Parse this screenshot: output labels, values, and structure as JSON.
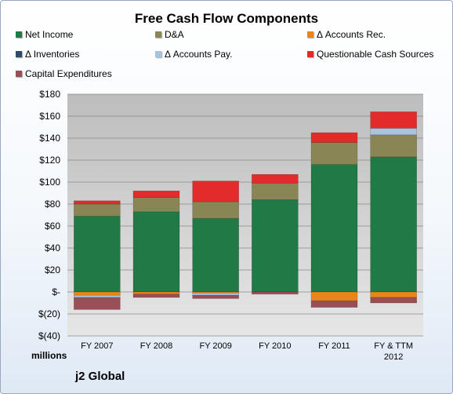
{
  "chart_data": {
    "type": "bar",
    "stacked": true,
    "title": "Free Cash Flow Components",
    "units_label": "millions",
    "footer": "j2 Global",
    "categories": [
      [
        "FY 2007"
      ],
      [
        "FY 2008"
      ],
      [
        "FY 2009"
      ],
      [
        "FY 2010"
      ],
      [
        "FY 2011"
      ],
      [
        "FY & TTM",
        "2012"
      ]
    ],
    "ylim": [
      -40,
      180
    ],
    "yticks": [
      {
        "v": 180,
        "label": "$180"
      },
      {
        "v": 160,
        "label": "$160"
      },
      {
        "v": 140,
        "label": "$140"
      },
      {
        "v": 120,
        "label": "$120"
      },
      {
        "v": 100,
        "label": "$100"
      },
      {
        "v": 80,
        "label": "$80"
      },
      {
        "v": 60,
        "label": "$60"
      },
      {
        "v": 40,
        "label": "$40"
      },
      {
        "v": 20,
        "label": "$20"
      },
      {
        "v": 0,
        "label": "$-"
      },
      {
        "v": -20,
        "label": "$(20)"
      },
      {
        "v": -40,
        "label": "$(40)"
      }
    ],
    "grid": true,
    "legend_position": "top",
    "series": [
      {
        "name": "Net Income",
        "color": "#1f7a45",
        "values": [
          69,
          73,
          67,
          84,
          116,
          123
        ]
      },
      {
        "name": "D&A",
        "color": "#8a8554",
        "values": [
          11,
          13,
          15,
          15,
          20,
          20
        ]
      },
      {
        "name": "Δ Accounts Rec.",
        "color": "#e9861b",
        "values": [
          -3,
          -2,
          -1,
          0,
          -8,
          -5
        ]
      },
      {
        "name": "Δ Inventories",
        "color": "#2f4a67",
        "values": [
          0,
          0,
          0,
          0,
          0,
          0
        ]
      },
      {
        "name": "Δ Accounts Pay.",
        "color": "#a9c3de",
        "values": [
          -2,
          0,
          -2,
          0,
          0,
          6
        ]
      },
      {
        "name": "Questionable Cash Sources",
        "color": "#e32b2b",
        "values": [
          3,
          6,
          19,
          8,
          9,
          15
        ]
      },
      {
        "name": "Capital Expenditures",
        "color": "#9a4e58",
        "values": [
          -11,
          -3,
          -3,
          -2,
          -6,
          -5
        ]
      }
    ]
  }
}
